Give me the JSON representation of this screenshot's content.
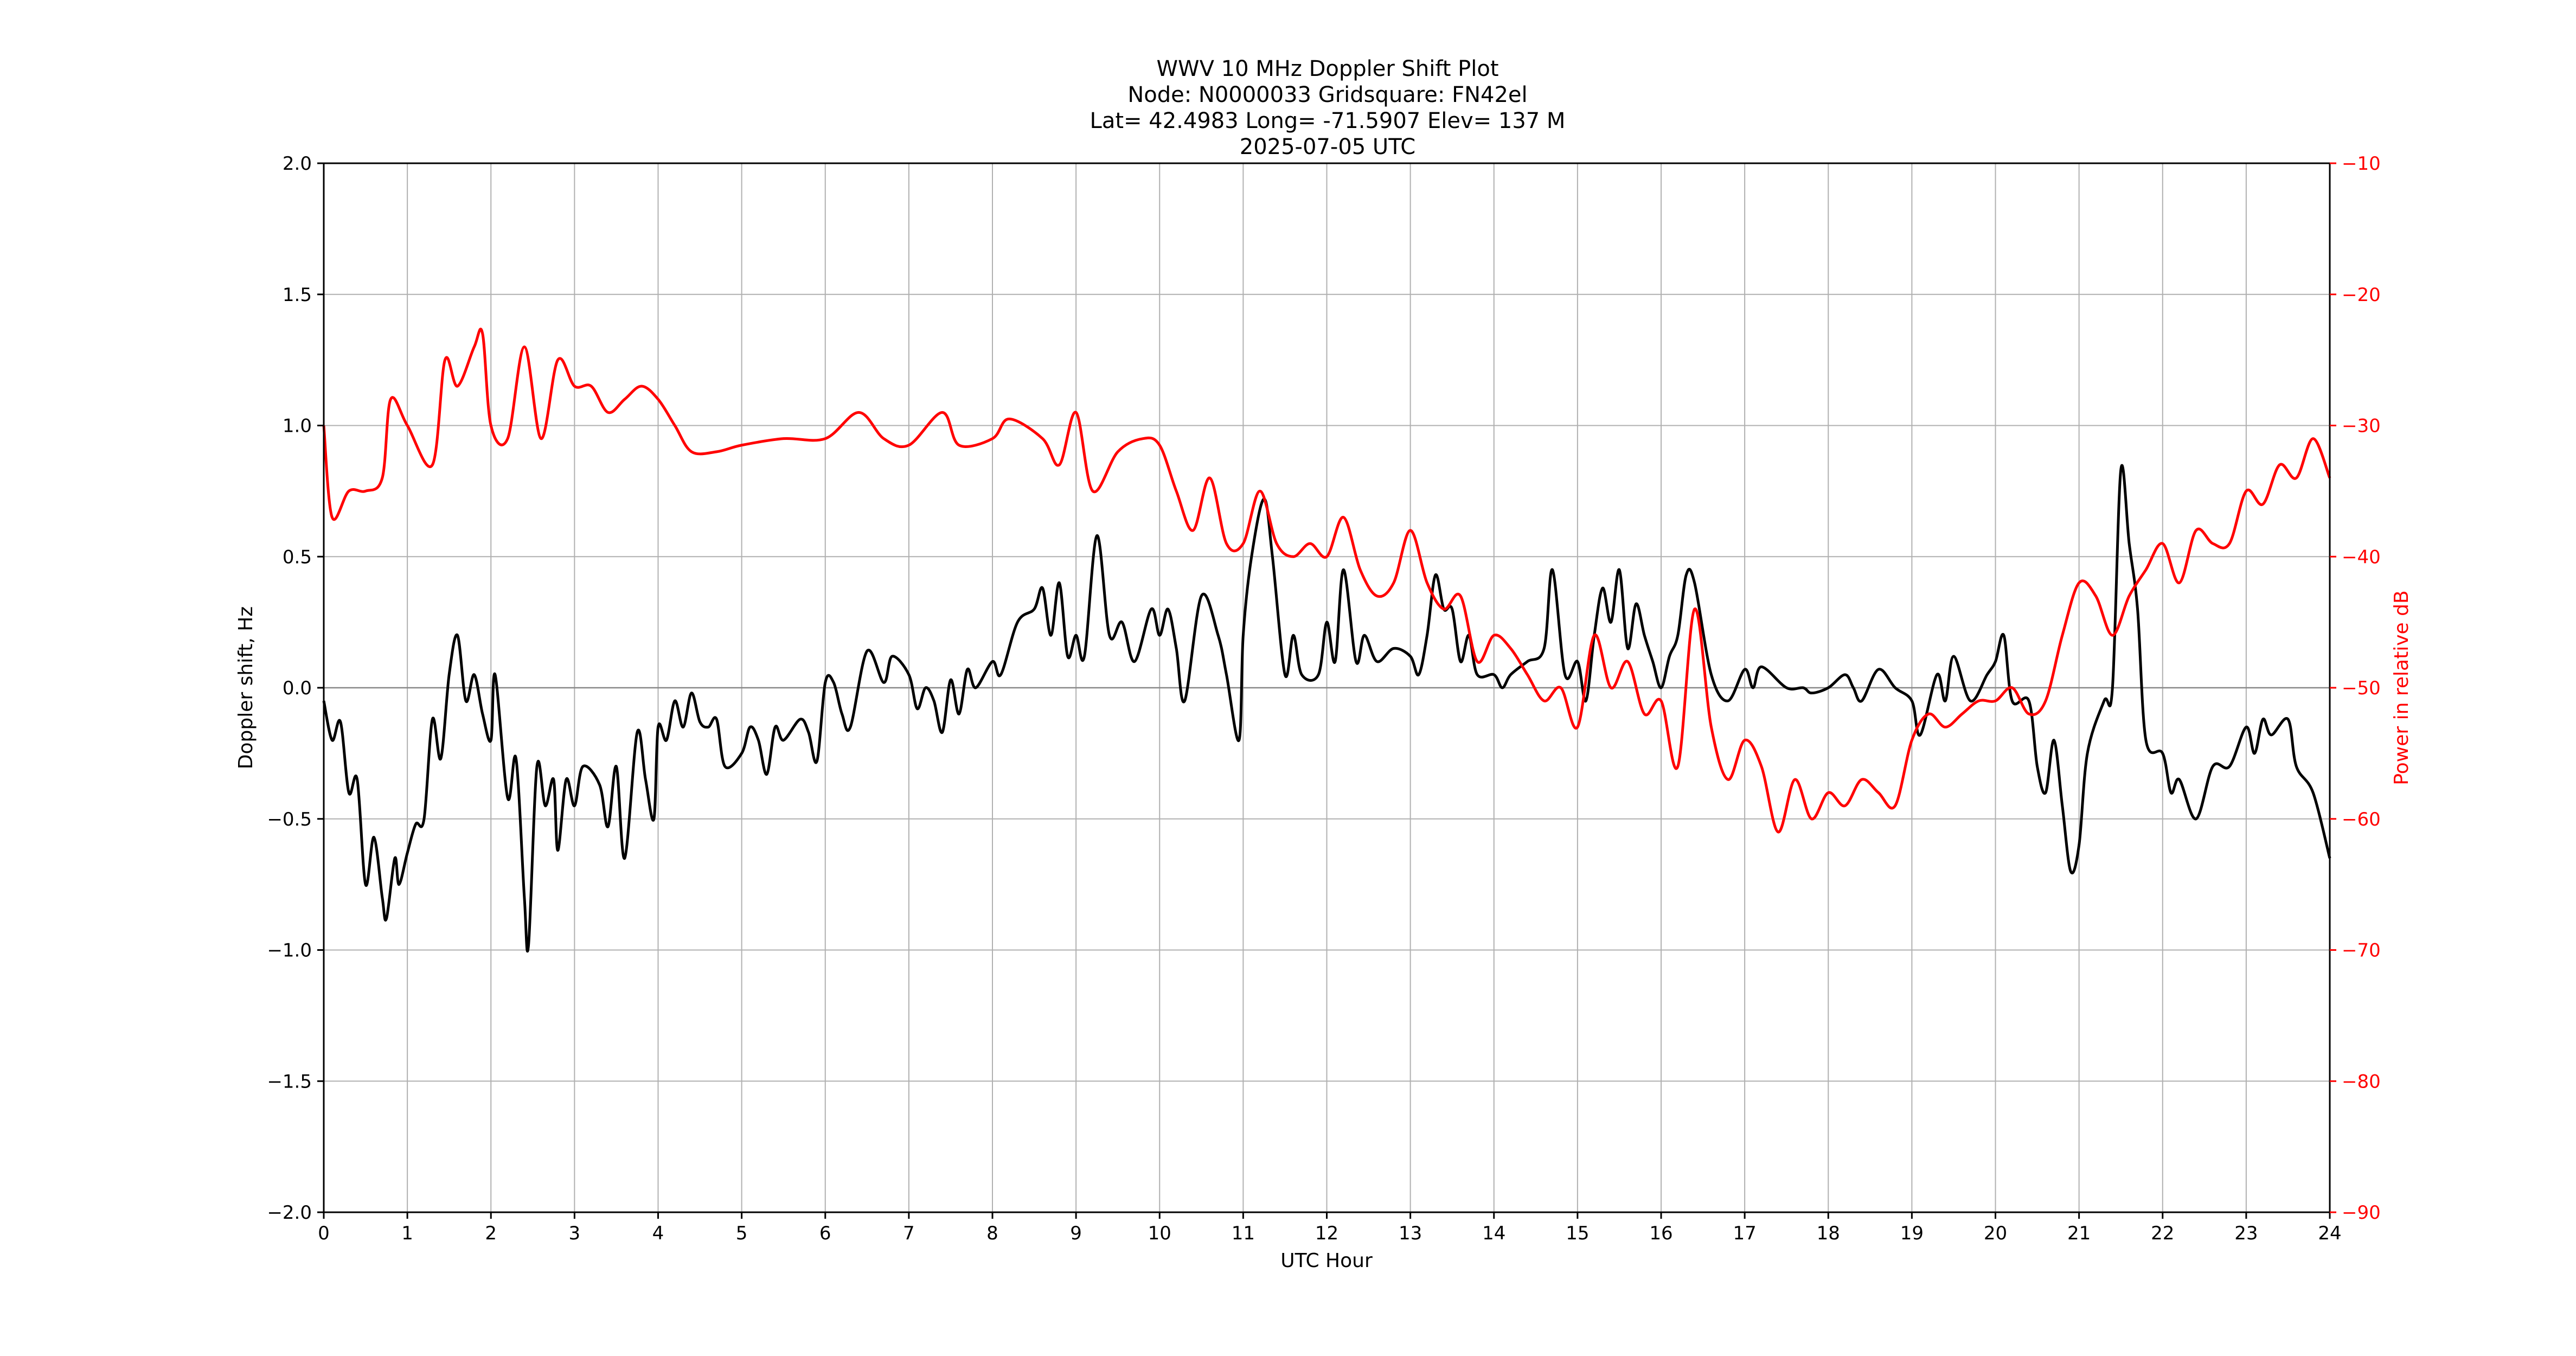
{
  "chart_data": {
    "type": "line",
    "title_lines": [
      "WWV 10 MHz Doppler Shift Plot",
      "Node:  N0000033     Gridsquare:  FN42el",
      "Lat= 42.4983    Long= -71.5907    Elev= 137 M",
      "2025-07-05  UTC"
    ],
    "xlabel": "UTC Hour",
    "ylabel": "Doppler shift, Hz",
    "y2label": "Power in relative dB",
    "xlim": [
      0,
      24
    ],
    "ylim": [
      -2.0,
      2.0
    ],
    "y2lim": [
      -90,
      -10
    ],
    "grid": true,
    "x_ticks": [
      "0",
      "1",
      "2",
      "3",
      "4",
      "5",
      "6",
      "7",
      "8",
      "9",
      "10",
      "11",
      "12",
      "13",
      "14",
      "15",
      "16",
      "17",
      "18",
      "19",
      "20",
      "21",
      "22",
      "23",
      "24"
    ],
    "y_ticks": [
      "2.0",
      "1.5",
      "1.0",
      "0.5",
      "0.0",
      "−0.5",
      "−1.0",
      "−1.5",
      "−2.0"
    ],
    "y_tick_values": [
      2.0,
      1.5,
      1.0,
      0.5,
      0.0,
      -0.5,
      -1.0,
      -1.5,
      -2.0
    ],
    "y2_ticks": [
      "−10",
      "−20",
      "−30",
      "−40",
      "−50",
      "−60",
      "−70",
      "−80",
      "−90"
    ],
    "y2_tick_values": [
      -10,
      -20,
      -30,
      -40,
      -50,
      -60,
      -70,
      -80,
      -90
    ],
    "colors": {
      "doppler": "#000000",
      "power": "#ff0000",
      "grid": "#b0b0b0"
    },
    "series": [
      {
        "name": "Doppler shift (Hz)",
        "axis": "left",
        "x": [
          0,
          0.1,
          0.2,
          0.3,
          0.4,
          0.5,
          0.6,
          0.7,
          0.75,
          0.85,
          0.9,
          1.0,
          1.1,
          1.2,
          1.3,
          1.4,
          1.5,
          1.6,
          1.7,
          1.8,
          1.9,
          2.0,
          2.05,
          2.2,
          2.3,
          2.4,
          2.45,
          2.55,
          2.65,
          2.75,
          2.8,
          2.9,
          3.0,
          3.1,
          3.3,
          3.4,
          3.5,
          3.6,
          3.75,
          3.85,
          3.95,
          4.0,
          4.1,
          4.2,
          4.3,
          4.4,
          4.5,
          4.6,
          4.7,
          4.8,
          5.0,
          5.1,
          5.2,
          5.3,
          5.4,
          5.5,
          5.7,
          5.8,
          5.9,
          6.0,
          6.1,
          6.2,
          6.3,
          6.5,
          6.7,
          6.8,
          7.0,
          7.1,
          7.2,
          7.3,
          7.4,
          7.5,
          7.6,
          7.7,
          7.8,
          8.0,
          8.1,
          8.3,
          8.5,
          8.6,
          8.7,
          8.8,
          8.9,
          9.0,
          9.1,
          9.25,
          9.4,
          9.55,
          9.7,
          9.9,
          10.0,
          10.1,
          10.2,
          10.3,
          10.5,
          10.7,
          10.8,
          10.95,
          11.0,
          11.1,
          11.25,
          11.35,
          11.5,
          11.6,
          11.7,
          11.9,
          12.0,
          12.1,
          12.2,
          12.35,
          12.45,
          12.6,
          12.8,
          13.0,
          13.1,
          13.2,
          13.3,
          13.4,
          13.5,
          13.6,
          13.7,
          13.8,
          14.0,
          14.1,
          14.2,
          14.4,
          14.6,
          14.7,
          14.85,
          15.0,
          15.1,
          15.2,
          15.3,
          15.4,
          15.5,
          15.6,
          15.7,
          15.8,
          15.9,
          16.0,
          16.1,
          16.2,
          16.3,
          16.4,
          16.6,
          16.8,
          17.0,
          17.1,
          17.2,
          17.5,
          17.7,
          17.8,
          18.0,
          18.2,
          18.3,
          18.4,
          18.6,
          18.8,
          19.0,
          19.1,
          19.3,
          19.4,
          19.5,
          19.7,
          19.9,
          20.0,
          20.1,
          20.2,
          20.4,
          20.5,
          20.6,
          20.7,
          20.8,
          20.9,
          21.0,
          21.1,
          21.3,
          21.4,
          21.5,
          21.6,
          21.7,
          21.8,
          22.0,
          22.1,
          22.2,
          22.4,
          22.6,
          22.8,
          23.0,
          23.1,
          23.2,
          23.3,
          23.5,
          23.6,
          23.8,
          24.0
        ],
        "y": [
          -0.05,
          -0.2,
          -0.13,
          -0.4,
          -0.35,
          -0.75,
          -0.57,
          -0.8,
          -0.88,
          -0.65,
          -0.75,
          -0.63,
          -0.52,
          -0.5,
          -0.12,
          -0.27,
          0.05,
          0.2,
          -0.05,
          0.05,
          -0.1,
          -0.2,
          0.05,
          -0.42,
          -0.27,
          -0.8,
          -0.98,
          -0.3,
          -0.45,
          -0.35,
          -0.62,
          -0.35,
          -0.45,
          -0.3,
          -0.37,
          -0.53,
          -0.3,
          -0.65,
          -0.17,
          -0.35,
          -0.5,
          -0.15,
          -0.2,
          -0.05,
          -0.15,
          -0.02,
          -0.13,
          -0.15,
          -0.12,
          -0.3,
          -0.25,
          -0.15,
          -0.2,
          -0.33,
          -0.15,
          -0.2,
          -0.12,
          -0.17,
          -0.28,
          0.02,
          0.02,
          -0.1,
          -0.15,
          0.14,
          0.02,
          0.12,
          0.05,
          -0.08,
          0.0,
          -0.05,
          -0.17,
          0.03,
          -0.1,
          0.07,
          0.0,
          0.1,
          0.05,
          0.25,
          0.3,
          0.38,
          0.2,
          0.4,
          0.12,
          0.2,
          0.12,
          0.58,
          0.2,
          0.25,
          0.1,
          0.3,
          0.2,
          0.3,
          0.15,
          -0.05,
          0.35,
          0.2,
          0.05,
          -0.2,
          0.2,
          0.5,
          0.72,
          0.5,
          0.05,
          0.2,
          0.05,
          0.05,
          0.25,
          0.1,
          0.45,
          0.1,
          0.2,
          0.1,
          0.15,
          0.12,
          0.05,
          0.2,
          0.43,
          0.3,
          0.3,
          0.1,
          0.2,
          0.05,
          0.05,
          0.0,
          0.05,
          0.1,
          0.15,
          0.45,
          0.05,
          0.1,
          -0.05,
          0.2,
          0.38,
          0.25,
          0.45,
          0.15,
          0.32,
          0.2,
          0.1,
          0.0,
          0.12,
          0.2,
          0.43,
          0.4,
          0.05,
          -0.05,
          0.07,
          0.0,
          0.08,
          0.0,
          0.0,
          -0.02,
          0.0,
          0.05,
          0.0,
          -0.05,
          0.07,
          0.0,
          -0.05,
          -0.18,
          0.05,
          -0.05,
          0.12,
          -0.05,
          0.05,
          0.1,
          0.2,
          -0.05,
          -0.05,
          -0.3,
          -0.4,
          -0.2,
          -0.45,
          -0.7,
          -0.6,
          -0.25,
          -0.05,
          0.0,
          0.83,
          0.55,
          0.3,
          -0.2,
          -0.25,
          -0.4,
          -0.35,
          -0.5,
          -0.3,
          -0.3,
          -0.15,
          -0.25,
          -0.12,
          -0.18,
          -0.12,
          -0.3,
          -0.4,
          -0.65
        ]
      },
      {
        "name": "Power (relative dB)",
        "axis": "right",
        "x": [
          0,
          0.1,
          0.3,
          0.5,
          0.7,
          0.8,
          1.0,
          1.3,
          1.45,
          1.6,
          1.8,
          1.9,
          2.0,
          2.2,
          2.4,
          2.6,
          2.8,
          3.0,
          3.2,
          3.4,
          3.6,
          3.8,
          4.0,
          4.2,
          4.4,
          4.7,
          5.0,
          5.5,
          6.0,
          6.4,
          6.7,
          7.0,
          7.4,
          7.6,
          8.0,
          8.2,
          8.6,
          8.8,
          9.0,
          9.2,
          9.5,
          9.8,
          10.0,
          10.2,
          10.4,
          10.6,
          10.8,
          11.0,
          11.2,
          11.4,
          11.6,
          11.8,
          12.0,
          12.2,
          12.4,
          12.6,
          12.8,
          13.0,
          13.2,
          13.4,
          13.6,
          13.8,
          14.0,
          14.2,
          14.4,
          14.6,
          14.8,
          15.0,
          15.2,
          15.4,
          15.6,
          15.8,
          16.0,
          16.2,
          16.4,
          16.6,
          16.8,
          17.0,
          17.2,
          17.4,
          17.6,
          17.8,
          18.0,
          18.2,
          18.4,
          18.6,
          18.8,
          19.0,
          19.2,
          19.4,
          19.6,
          19.8,
          20.0,
          20.2,
          20.4,
          20.6,
          20.8,
          21.0,
          21.2,
          21.4,
          21.6,
          21.8,
          22.0,
          22.2,
          22.4,
          22.6,
          22.8,
          23.0,
          23.2,
          23.4,
          23.6,
          23.8,
          24.0
        ],
        "y": [
          -30,
          -37,
          -35,
          -35,
          -34,
          -28,
          -30,
          -33,
          -25,
          -27,
          -24,
          -23,
          -30,
          -31,
          -24,
          -31,
          -25,
          -27,
          -27,
          -29,
          -28,
          -27,
          -28,
          -30,
          -32,
          -32,
          -31.5,
          -31,
          -31,
          -29,
          -31,
          -31.5,
          -29,
          -31.5,
          -31,
          -29.5,
          -31,
          -33,
          -29,
          -35,
          -32,
          -31,
          -31.5,
          -35,
          -38,
          -34,
          -39,
          -39,
          -35,
          -39,
          -40,
          -39,
          -40,
          -37,
          -41,
          -43,
          -42,
          -38,
          -42,
          -44,
          -43,
          -48,
          -46,
          -47,
          -49,
          -51,
          -50,
          -53,
          -46,
          -50,
          -48,
          -52,
          -51,
          -56,
          -44,
          -53,
          -57,
          -54,
          -56,
          -61,
          -57,
          -60,
          -58,
          -59,
          -57,
          -58,
          -59,
          -54,
          -52,
          -53,
          -52,
          -51,
          -51,
          -50,
          -52,
          -51,
          -46,
          -42,
          -43,
          -46,
          -43,
          -41,
          -39,
          -42,
          -38,
          -39,
          -39,
          -35,
          -36,
          -33,
          -34,
          -31,
          -34
        ]
      }
    ]
  }
}
